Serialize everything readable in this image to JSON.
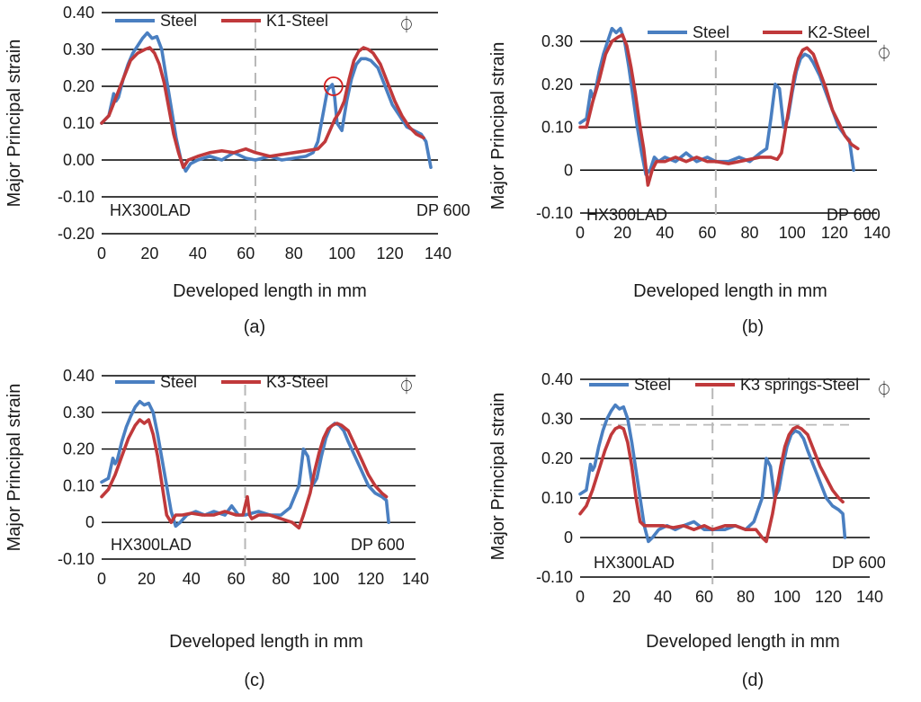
{
  "colors": {
    "steel": "#4a7fc1",
    "variant": "#c0393b",
    "grid": "#000000",
    "divider": "#b8b8b8",
    "marker": "#d42020"
  },
  "chart_data": [
    {
      "id": "a",
      "type": "line",
      "caption": "(a)",
      "xlabel": "Developed length in mm",
      "ylabel": "Major Principal strain",
      "xlim": [
        0,
        140
      ],
      "ylim": [
        -0.2,
        0.4
      ],
      "xticks": [
        "0",
        "20",
        "40",
        "60",
        "80",
        "100",
        "120",
        "140"
      ],
      "xtick_values": [
        0,
        20,
        40,
        60,
        80,
        100,
        120,
        140
      ],
      "yticks": [
        "-0.20",
        "-0.10",
        "0.00",
        "0.10",
        "0.20",
        "0.30",
        "0.40"
      ],
      "ytick_values": [
        -0.2,
        -0.1,
        0.0,
        0.1,
        0.2,
        0.3,
        0.4
      ],
      "divider_x": 64,
      "left_label": "HX300LAD",
      "right_label": "DP 600",
      "symbol": "⏀",
      "series": [
        {
          "name": "Steel",
          "color_key": "steel",
          "x": [
            0,
            3,
            5,
            6,
            7,
            9,
            11,
            13,
            15,
            17,
            19,
            21,
            23,
            25,
            27,
            29,
            31,
            33,
            35,
            37,
            40,
            45,
            50,
            55,
            60,
            64,
            70,
            75,
            80,
            85,
            88,
            90,
            92,
            94,
            96,
            97,
            98,
            100,
            102,
            104,
            106,
            108,
            110,
            112,
            115,
            118,
            121,
            124,
            127,
            130,
            133,
            135,
            137
          ],
          "y": [
            0.1,
            0.12,
            0.18,
            0.16,
            0.17,
            0.22,
            0.26,
            0.29,
            0.31,
            0.33,
            0.345,
            0.33,
            0.335,
            0.3,
            0.22,
            0.14,
            0.06,
            0.0,
            -0.03,
            -0.01,
            0.0,
            0.01,
            0.0,
            0.02,
            0.005,
            0.0,
            0.01,
            0.0,
            0.005,
            0.01,
            0.02,
            0.05,
            0.12,
            0.19,
            0.205,
            0.17,
            0.1,
            0.08,
            0.16,
            0.22,
            0.26,
            0.275,
            0.275,
            0.27,
            0.25,
            0.2,
            0.15,
            0.12,
            0.09,
            0.08,
            0.07,
            0.05,
            -0.02
          ]
        },
        {
          "name": "K1-Steel",
          "color_key": "variant",
          "x": [
            0,
            3,
            6,
            9,
            12,
            15,
            18,
            20,
            22,
            24,
            26,
            28,
            30,
            32,
            34,
            36,
            40,
            45,
            50,
            55,
            60,
            64,
            70,
            75,
            80,
            85,
            90,
            93,
            95,
            97,
            99,
            101,
            103,
            105,
            107,
            109,
            111,
            113,
            116,
            119,
            122,
            125,
            128,
            131,
            134
          ],
          "y": [
            0.1,
            0.12,
            0.17,
            0.22,
            0.27,
            0.29,
            0.3,
            0.305,
            0.29,
            0.26,
            0.21,
            0.14,
            0.07,
            0.02,
            -0.02,
            0.0,
            0.01,
            0.02,
            0.025,
            0.02,
            0.03,
            0.02,
            0.01,
            0.015,
            0.02,
            0.025,
            0.03,
            0.05,
            0.08,
            0.11,
            0.13,
            0.16,
            0.22,
            0.27,
            0.295,
            0.305,
            0.3,
            0.29,
            0.26,
            0.21,
            0.16,
            0.12,
            0.09,
            0.07,
            0.06
          ]
        }
      ],
      "circle_marker": {
        "x": 96.5,
        "y": 0.2
      }
    },
    {
      "id": "b",
      "type": "line",
      "caption": "(b)",
      "xlabel": "Developed length in mm",
      "ylabel": "Major Principal strain",
      "xlim": [
        0,
        140
      ],
      "ylim": [
        -0.1,
        0.3
      ],
      "xticks": [
        "0",
        "20",
        "40",
        "60",
        "80",
        "100",
        "120",
        "140"
      ],
      "xtick_values": [
        0,
        20,
        40,
        60,
        80,
        100,
        120,
        140
      ],
      "yticks": [
        "-0.10",
        "0",
        "0.10",
        "0.20",
        "0.30"
      ],
      "ytick_values": [
        -0.1,
        0.0,
        0.1,
        0.2,
        0.3
      ],
      "divider_x": 64,
      "left_label": "HX300LAD",
      "right_label": "DP 600",
      "symbol": "⏀",
      "series": [
        {
          "name": "Steel",
          "color_key": "steel",
          "x": [
            0,
            3,
            5,
            6,
            7,
            9,
            11,
            13,
            15,
            17,
            19,
            21,
            23,
            25,
            27,
            29,
            31,
            33,
            35,
            37,
            40,
            45,
            50,
            55,
            60,
            64,
            70,
            75,
            80,
            85,
            88,
            90,
            92,
            94,
            96,
            98,
            100,
            102,
            104,
            106,
            108,
            110,
            113,
            116,
            119,
            122,
            125,
            127,
            129
          ],
          "y": [
            0.11,
            0.12,
            0.185,
            0.17,
            0.18,
            0.23,
            0.27,
            0.3,
            0.33,
            0.32,
            0.33,
            0.3,
            0.24,
            0.17,
            0.1,
            0.04,
            -0.01,
            0.0,
            0.03,
            0.02,
            0.03,
            0.02,
            0.04,
            0.02,
            0.03,
            0.02,
            0.02,
            0.03,
            0.02,
            0.04,
            0.05,
            0.12,
            0.2,
            0.19,
            0.1,
            0.12,
            0.18,
            0.23,
            0.26,
            0.27,
            0.265,
            0.25,
            0.22,
            0.18,
            0.14,
            0.1,
            0.08,
            0.07,
            0.0
          ]
        },
        {
          "name": "K2-Steel",
          "color_key": "variant",
          "x": [
            0,
            3,
            6,
            9,
            12,
            15,
            18,
            20,
            22,
            24,
            26,
            28,
            30,
            32,
            34,
            36,
            40,
            45,
            50,
            55,
            60,
            64,
            70,
            75,
            80,
            85,
            90,
            93,
            95,
            97,
            99,
            101,
            103,
            105,
            107,
            110,
            113,
            116,
            119,
            122,
            125,
            128,
            131
          ],
          "y": [
            0.1,
            0.1,
            0.16,
            0.21,
            0.27,
            0.3,
            0.31,
            0.315,
            0.29,
            0.24,
            0.18,
            0.11,
            0.05,
            -0.035,
            0.0,
            0.02,
            0.02,
            0.03,
            0.02,
            0.03,
            0.02,
            0.02,
            0.015,
            0.02,
            0.025,
            0.03,
            0.03,
            0.025,
            0.04,
            0.1,
            0.16,
            0.22,
            0.26,
            0.28,
            0.285,
            0.27,
            0.23,
            0.19,
            0.14,
            0.11,
            0.08,
            0.06,
            0.05
          ]
        }
      ]
    },
    {
      "id": "c",
      "type": "line",
      "caption": "(c)",
      "xlabel": "Developed length in mm",
      "ylabel": "Major Principal strain",
      "xlim": [
        0,
        140
      ],
      "ylim": [
        -0.1,
        0.4
      ],
      "xticks": [
        "0",
        "20",
        "40",
        "60",
        "80",
        "100",
        "120",
        "140"
      ],
      "xtick_values": [
        0,
        20,
        40,
        60,
        80,
        100,
        120,
        140
      ],
      "yticks": [
        "-0.10",
        "0",
        "0.10",
        "0.20",
        "0.30",
        "0.40"
      ],
      "ytick_values": [
        -0.1,
        0.0,
        0.1,
        0.2,
        0.3,
        0.4
      ],
      "divider_x": 64,
      "left_label": "HX300LAD",
      "right_label": "DP 600",
      "symbol": "⏀",
      "series": [
        {
          "name": "Steel",
          "color_key": "steel",
          "x": [
            0,
            3,
            5,
            6,
            7,
            9,
            11,
            13,
            15,
            17,
            19,
            21,
            23,
            25,
            27,
            29,
            31,
            33,
            35,
            38,
            42,
            46,
            50,
            55,
            58,
            61,
            64,
            70,
            75,
            80,
            84,
            88,
            90,
            92,
            94,
            96,
            98,
            100,
            102,
            104,
            106,
            108,
            110,
            113,
            116,
            119,
            122,
            125,
            127,
            128
          ],
          "y": [
            0.11,
            0.12,
            0.175,
            0.16,
            0.17,
            0.22,
            0.26,
            0.29,
            0.315,
            0.33,
            0.32,
            0.325,
            0.3,
            0.24,
            0.17,
            0.1,
            0.03,
            -0.01,
            0.0,
            0.02,
            0.03,
            0.02,
            0.03,
            0.02,
            0.045,
            0.02,
            0.02,
            0.03,
            0.02,
            0.02,
            0.04,
            0.1,
            0.2,
            0.18,
            0.1,
            0.12,
            0.18,
            0.23,
            0.26,
            0.27,
            0.265,
            0.25,
            0.22,
            0.18,
            0.14,
            0.1,
            0.08,
            0.07,
            0.06,
            0.0
          ]
        },
        {
          "name": "K3-Steel",
          "color_key": "variant",
          "x": [
            0,
            3,
            6,
            9,
            12,
            15,
            17,
            19,
            21,
            23,
            25,
            27,
            29,
            31,
            33,
            36,
            40,
            45,
            50,
            55,
            60,
            63,
            65,
            66,
            67,
            70,
            75,
            80,
            85,
            88,
            90,
            93,
            95,
            97,
            99,
            101,
            103,
            105,
            107,
            110,
            113,
            116,
            119,
            122,
            125,
            127
          ],
          "y": [
            0.07,
            0.09,
            0.13,
            0.18,
            0.23,
            0.265,
            0.28,
            0.27,
            0.28,
            0.24,
            0.18,
            0.1,
            0.02,
            0.0,
            0.02,
            0.02,
            0.025,
            0.02,
            0.02,
            0.03,
            0.02,
            0.02,
            0.07,
            0.02,
            0.01,
            0.02,
            0.02,
            0.01,
            0.0,
            -0.015,
            0.02,
            0.08,
            0.14,
            0.19,
            0.23,
            0.255,
            0.265,
            0.27,
            0.265,
            0.25,
            0.21,
            0.17,
            0.13,
            0.1,
            0.08,
            0.07
          ]
        }
      ]
    },
    {
      "id": "d",
      "type": "line",
      "caption": "(d)",
      "xlabel": "Developed length in mm",
      "ylabel": "Major Principal strain",
      "xlim": [
        0,
        140
      ],
      "ylim": [
        -0.1,
        0.4
      ],
      "xticks": [
        "0",
        "20",
        "40",
        "60",
        "80",
        "100",
        "120",
        "140"
      ],
      "xtick_values": [
        0,
        20,
        40,
        60,
        80,
        100,
        120,
        140
      ],
      "yticks": [
        "-0.10",
        "0",
        "0.10",
        "0.20",
        "0.30",
        "0.40"
      ],
      "ytick_values": [
        -0.1,
        0.0,
        0.1,
        0.2,
        0.3,
        0.4
      ],
      "divider_x": 64,
      "left_label": "HX300LAD",
      "right_label": "DP 600",
      "symbol": "⏀",
      "reference_y": 0.285,
      "reference_x": [
        10,
        130
      ],
      "series": [
        {
          "name": "Steel",
          "color_key": "steel",
          "x": [
            0,
            3,
            5,
            6,
            7,
            9,
            11,
            13,
            15,
            17,
            19,
            21,
            23,
            25,
            27,
            29,
            31,
            33,
            35,
            38,
            42,
            46,
            50,
            55,
            60,
            64,
            70,
            75,
            80,
            84,
            88,
            90,
            92,
            94,
            96,
            98,
            100,
            102,
            104,
            106,
            108,
            110,
            113,
            116,
            119,
            122,
            125,
            127,
            128
          ],
          "y": [
            0.11,
            0.12,
            0.185,
            0.17,
            0.18,
            0.23,
            0.27,
            0.3,
            0.32,
            0.335,
            0.325,
            0.33,
            0.3,
            0.24,
            0.17,
            0.1,
            0.03,
            -0.01,
            0.0,
            0.02,
            0.03,
            0.02,
            0.03,
            0.04,
            0.02,
            0.02,
            0.02,
            0.03,
            0.02,
            0.04,
            0.1,
            0.2,
            0.18,
            0.1,
            0.12,
            0.18,
            0.23,
            0.26,
            0.27,
            0.265,
            0.25,
            0.22,
            0.18,
            0.14,
            0.1,
            0.08,
            0.07,
            0.06,
            0.0
          ]
        },
        {
          "name": "K3 springs-Steel",
          "color_key": "variant",
          "x": [
            0,
            3,
            6,
            9,
            12,
            15,
            17,
            19,
            21,
            23,
            25,
            27,
            29,
            31,
            33,
            36,
            40,
            45,
            50,
            55,
            60,
            64,
            70,
            75,
            80,
            85,
            88,
            90,
            93,
            95,
            97,
            99,
            101,
            103,
            105,
            107,
            110,
            113,
            116,
            119,
            122,
            125,
            127
          ],
          "y": [
            0.06,
            0.08,
            0.12,
            0.17,
            0.22,
            0.26,
            0.275,
            0.28,
            0.275,
            0.24,
            0.18,
            0.1,
            0.04,
            0.03,
            0.03,
            0.03,
            0.03,
            0.025,
            0.03,
            0.02,
            0.03,
            0.02,
            0.03,
            0.03,
            0.02,
            0.02,
            0.0,
            -0.01,
            0.06,
            0.12,
            0.18,
            0.23,
            0.26,
            0.275,
            0.28,
            0.275,
            0.26,
            0.22,
            0.18,
            0.15,
            0.12,
            0.1,
            0.09
          ]
        }
      ]
    }
  ]
}
